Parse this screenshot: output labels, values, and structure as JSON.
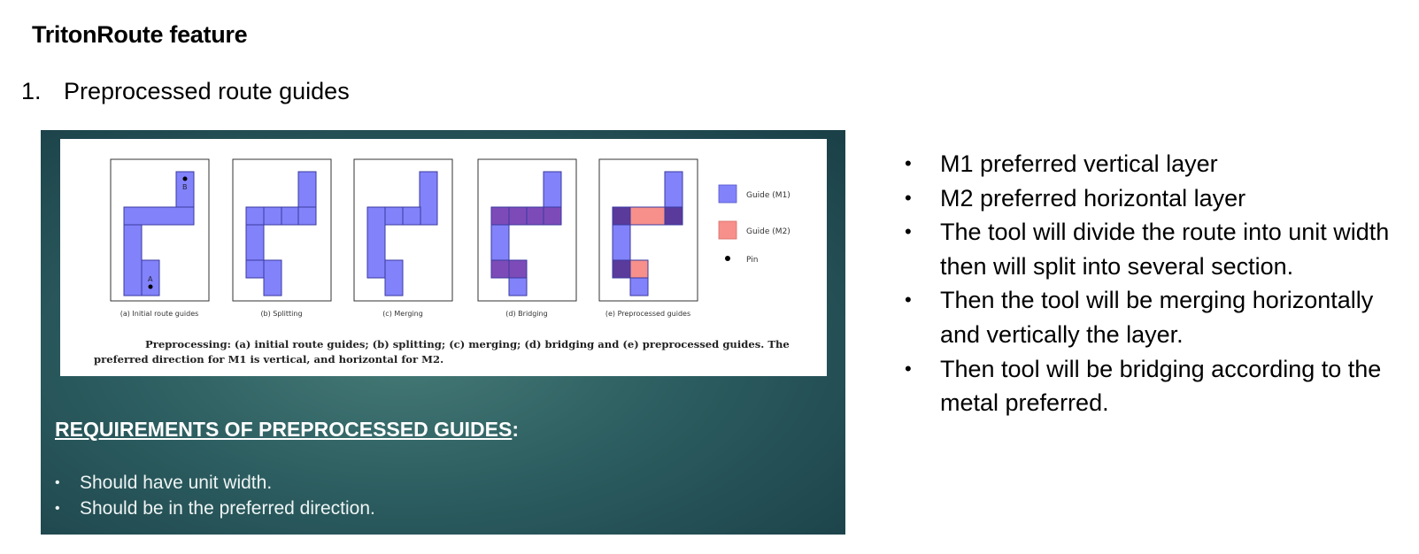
{
  "title": "TritonRoute feature",
  "section": {
    "number": "1.",
    "label": "Preprocessed route guides"
  },
  "figure": {
    "panels": [
      {
        "label": "(a) Initial route guides",
        "pin_labels": [
          "B",
          "A"
        ]
      },
      {
        "label": "(b) Splitting"
      },
      {
        "label": "(c) Merging"
      },
      {
        "label": "(d) Bridging"
      },
      {
        "label": "(e) Preprocessed guides"
      }
    ],
    "legend": [
      {
        "label": "Guide (M1)",
        "color": "#8282fa"
      },
      {
        "label": "Guide (M2)",
        "color": "#f7908a"
      },
      {
        "label": "Pin"
      }
    ],
    "caption": "Preprocessing: (a) initial route guides; (b) splitting; (c) merging; (d) bridging and (e) preprocessed guides. The preferred direction for M1 is vertical, and horizontal for M2."
  },
  "requirements": {
    "heading": "REQUIREMENTS OF PREPROCESSED GUIDES",
    "suffix": ":",
    "items": [
      "Should have unit width.",
      "Should be in the preferred direction."
    ]
  },
  "bullets": [
    "M1 preferred vertical layer",
    "M2 preferred horizontal layer",
    "The tool will divide the route into unit width then will split into several section.",
    "Then the tool will be merging horizontally and vertically the layer.",
    "Then tool will be bridging according to the metal preferred."
  ]
}
